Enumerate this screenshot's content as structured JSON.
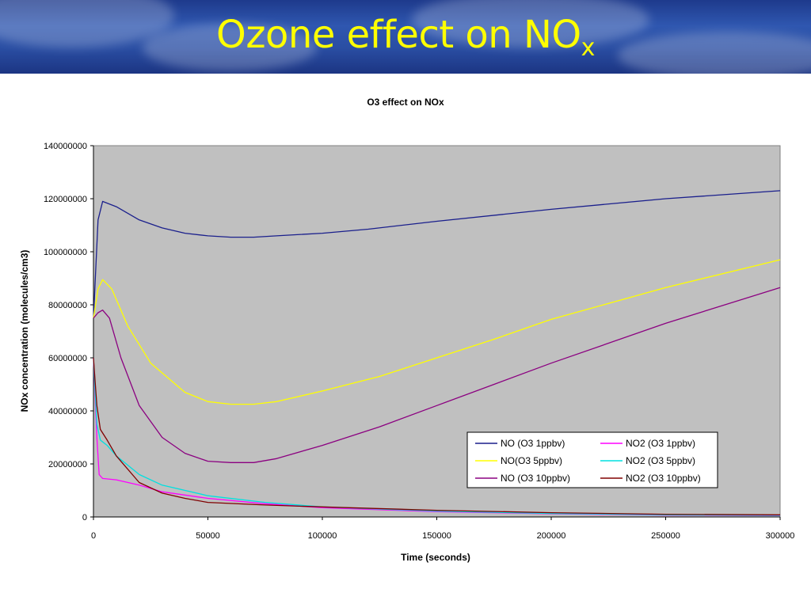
{
  "slide": {
    "title_main": "Ozone effect on NO",
    "title_sub": "x"
  },
  "colors": {
    "header_bg": "#2a4ea3",
    "title_text": "#ffff00",
    "plot_bg": "#c0c0c0"
  },
  "chart_data": {
    "type": "line",
    "title": "O3 effect on NOx",
    "xlabel": "Time (seconds)",
    "ylabel": "NOx concentration (molecules/cm3)",
    "xlim": [
      0,
      300000
    ],
    "ylim": [
      0,
      140000000
    ],
    "xticks": [
      0,
      50000,
      100000,
      150000,
      200000,
      250000,
      300000
    ],
    "yticks": [
      0,
      20000000,
      40000000,
      60000000,
      80000000,
      100000000,
      120000000,
      140000000
    ],
    "grid": false,
    "legend_position": "bottom-right",
    "series": [
      {
        "name": "NO (O3 1ppbv)",
        "color": "#1a1f8c",
        "x": [
          0,
          2000,
          4000,
          10000,
          20000,
          30000,
          40000,
          50000,
          60000,
          70000,
          80000,
          100000,
          120000,
          150000,
          200000,
          250000,
          300000
        ],
        "y": [
          75000000,
          112000000,
          119000000,
          117000000,
          112000000,
          109000000,
          107000000,
          106000000,
          105500000,
          105500000,
          106000000,
          107000000,
          108500000,
          111500000,
          116000000,
          120000000,
          123000000
        ]
      },
      {
        "name": "NO2 (O3 1ppbv)",
        "color": "#ff00ff",
        "x": [
          0,
          1500,
          2500,
          4000,
          10000,
          20000,
          30000,
          50000,
          75000,
          100000,
          150000,
          200000,
          250000,
          300000
        ],
        "y": [
          60000000,
          30000000,
          16000000,
          14500000,
          14000000,
          12000000,
          9500000,
          7000000,
          5000000,
          3500000,
          2000000,
          1200000,
          700000,
          500000
        ]
      },
      {
        "name": "NO(O3 5ppbv)",
        "color": "#ffff00",
        "x": [
          0,
          2000,
          4000,
          8000,
          15000,
          25000,
          40000,
          50000,
          60000,
          70000,
          80000,
          100000,
          125000,
          150000,
          175000,
          200000,
          250000,
          300000
        ],
        "y": [
          75000000,
          86000000,
          89500000,
          86000000,
          72000000,
          58000000,
          47000000,
          43500000,
          42500000,
          42500000,
          43500000,
          47500000,
          53000000,
          60000000,
          67000000,
          74500000,
          86500000,
          97000000
        ]
      },
      {
        "name": "NO2 (O3 5ppbv)",
        "color": "#00e0e0",
        "x": [
          0,
          1500,
          3000,
          6000,
          10000,
          20000,
          30000,
          50000,
          75000,
          100000,
          150000,
          200000,
          250000,
          300000
        ],
        "y": [
          60000000,
          35000000,
          29000000,
          27000000,
          23000000,
          16000000,
          12000000,
          8000000,
          5500000,
          3800000,
          2200000,
          1300000,
          800000,
          600000
        ]
      },
      {
        "name": "NO (O3 10ppbv)",
        "color": "#8b0080",
        "x": [
          0,
          2000,
          4000,
          7000,
          12000,
          20000,
          30000,
          40000,
          50000,
          60000,
          70000,
          80000,
          100000,
          125000,
          150000,
          175000,
          200000,
          250000,
          300000
        ],
        "y": [
          75000000,
          77000000,
          78000000,
          75000000,
          60000000,
          42000000,
          30000000,
          24000000,
          21000000,
          20500000,
          20500000,
          22000000,
          27000000,
          34000000,
          42000000,
          50000000,
          58000000,
          73000000,
          86500000
        ]
      },
      {
        "name": "NO2 (O3 10ppbv)",
        "color": "#800000",
        "x": [
          0,
          1500,
          3000,
          6000,
          10000,
          20000,
          30000,
          40000,
          50000,
          75000,
          100000,
          150000,
          200000,
          250000,
          300000
        ],
        "y": [
          60000000,
          42000000,
          33000000,
          29000000,
          23000000,
          13000000,
          9000000,
          7000000,
          5500000,
          4500000,
          3800000,
          2500000,
          1600000,
          1000000,
          800000
        ]
      }
    ]
  }
}
